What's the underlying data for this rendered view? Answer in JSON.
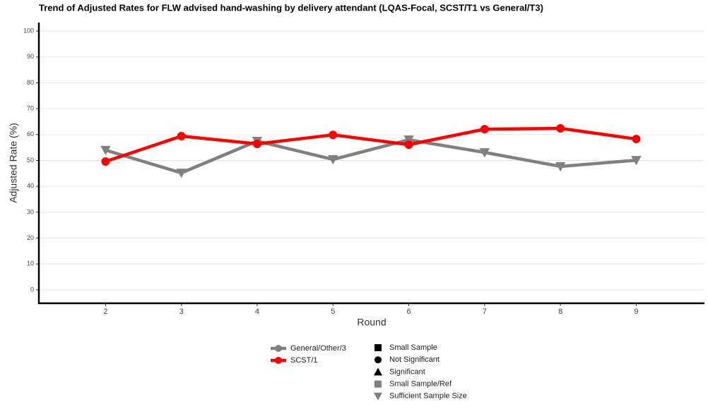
{
  "chart_data": {
    "type": "line",
    "title": "Trend of Adjusted Rates for FLW advised hand-washing by delivery attendant (LQAS-Focal, SCST/T1 vs General/T3)",
    "x_label": "Round",
    "y_label": "Adjusted Rate (%)",
    "x": [
      2,
      3,
      4,
      5,
      6,
      7,
      8,
      9
    ],
    "series": [
      {
        "name": "General/Other/3",
        "color": "#808080",
        "marker": "triangle-down",
        "values": [
          54,
          45.2,
          57.5,
          50.4,
          58,
          53.1,
          47.7,
          50.1
        ]
      },
      {
        "name": "SCST/1",
        "color": "#ff0000",
        "marker": "circle",
        "values": [
          49.6,
          59.4,
          56.4,
          59.9,
          56.1,
          62.1,
          62.4,
          58.3
        ]
      }
    ],
    "shape_legend": [
      {
        "label": "Small Sample",
        "shape": "square",
        "color": "#000000"
      },
      {
        "label": "Not Significant",
        "shape": "circle",
        "color": "#000000"
      },
      {
        "label": "Significant",
        "shape": "triangle",
        "color": "#000000"
      },
      {
        "label": "Small Sample/Ref",
        "shape": "square",
        "color": "#808080"
      },
      {
        "label": "Sufficient Sample Size",
        "shape": "triangle-down",
        "color": "#808080"
      }
    ],
    "xlim": [
      1.12,
      9.9
    ],
    "xticks": [
      2,
      3,
      4,
      5,
      6,
      7,
      8,
      9
    ],
    "ylim": [
      -5.2,
      103.3
    ],
    "yticks": [
      0,
      10,
      20,
      30,
      40,
      50,
      60,
      70,
      80,
      90,
      100
    ],
    "grid": true
  }
}
